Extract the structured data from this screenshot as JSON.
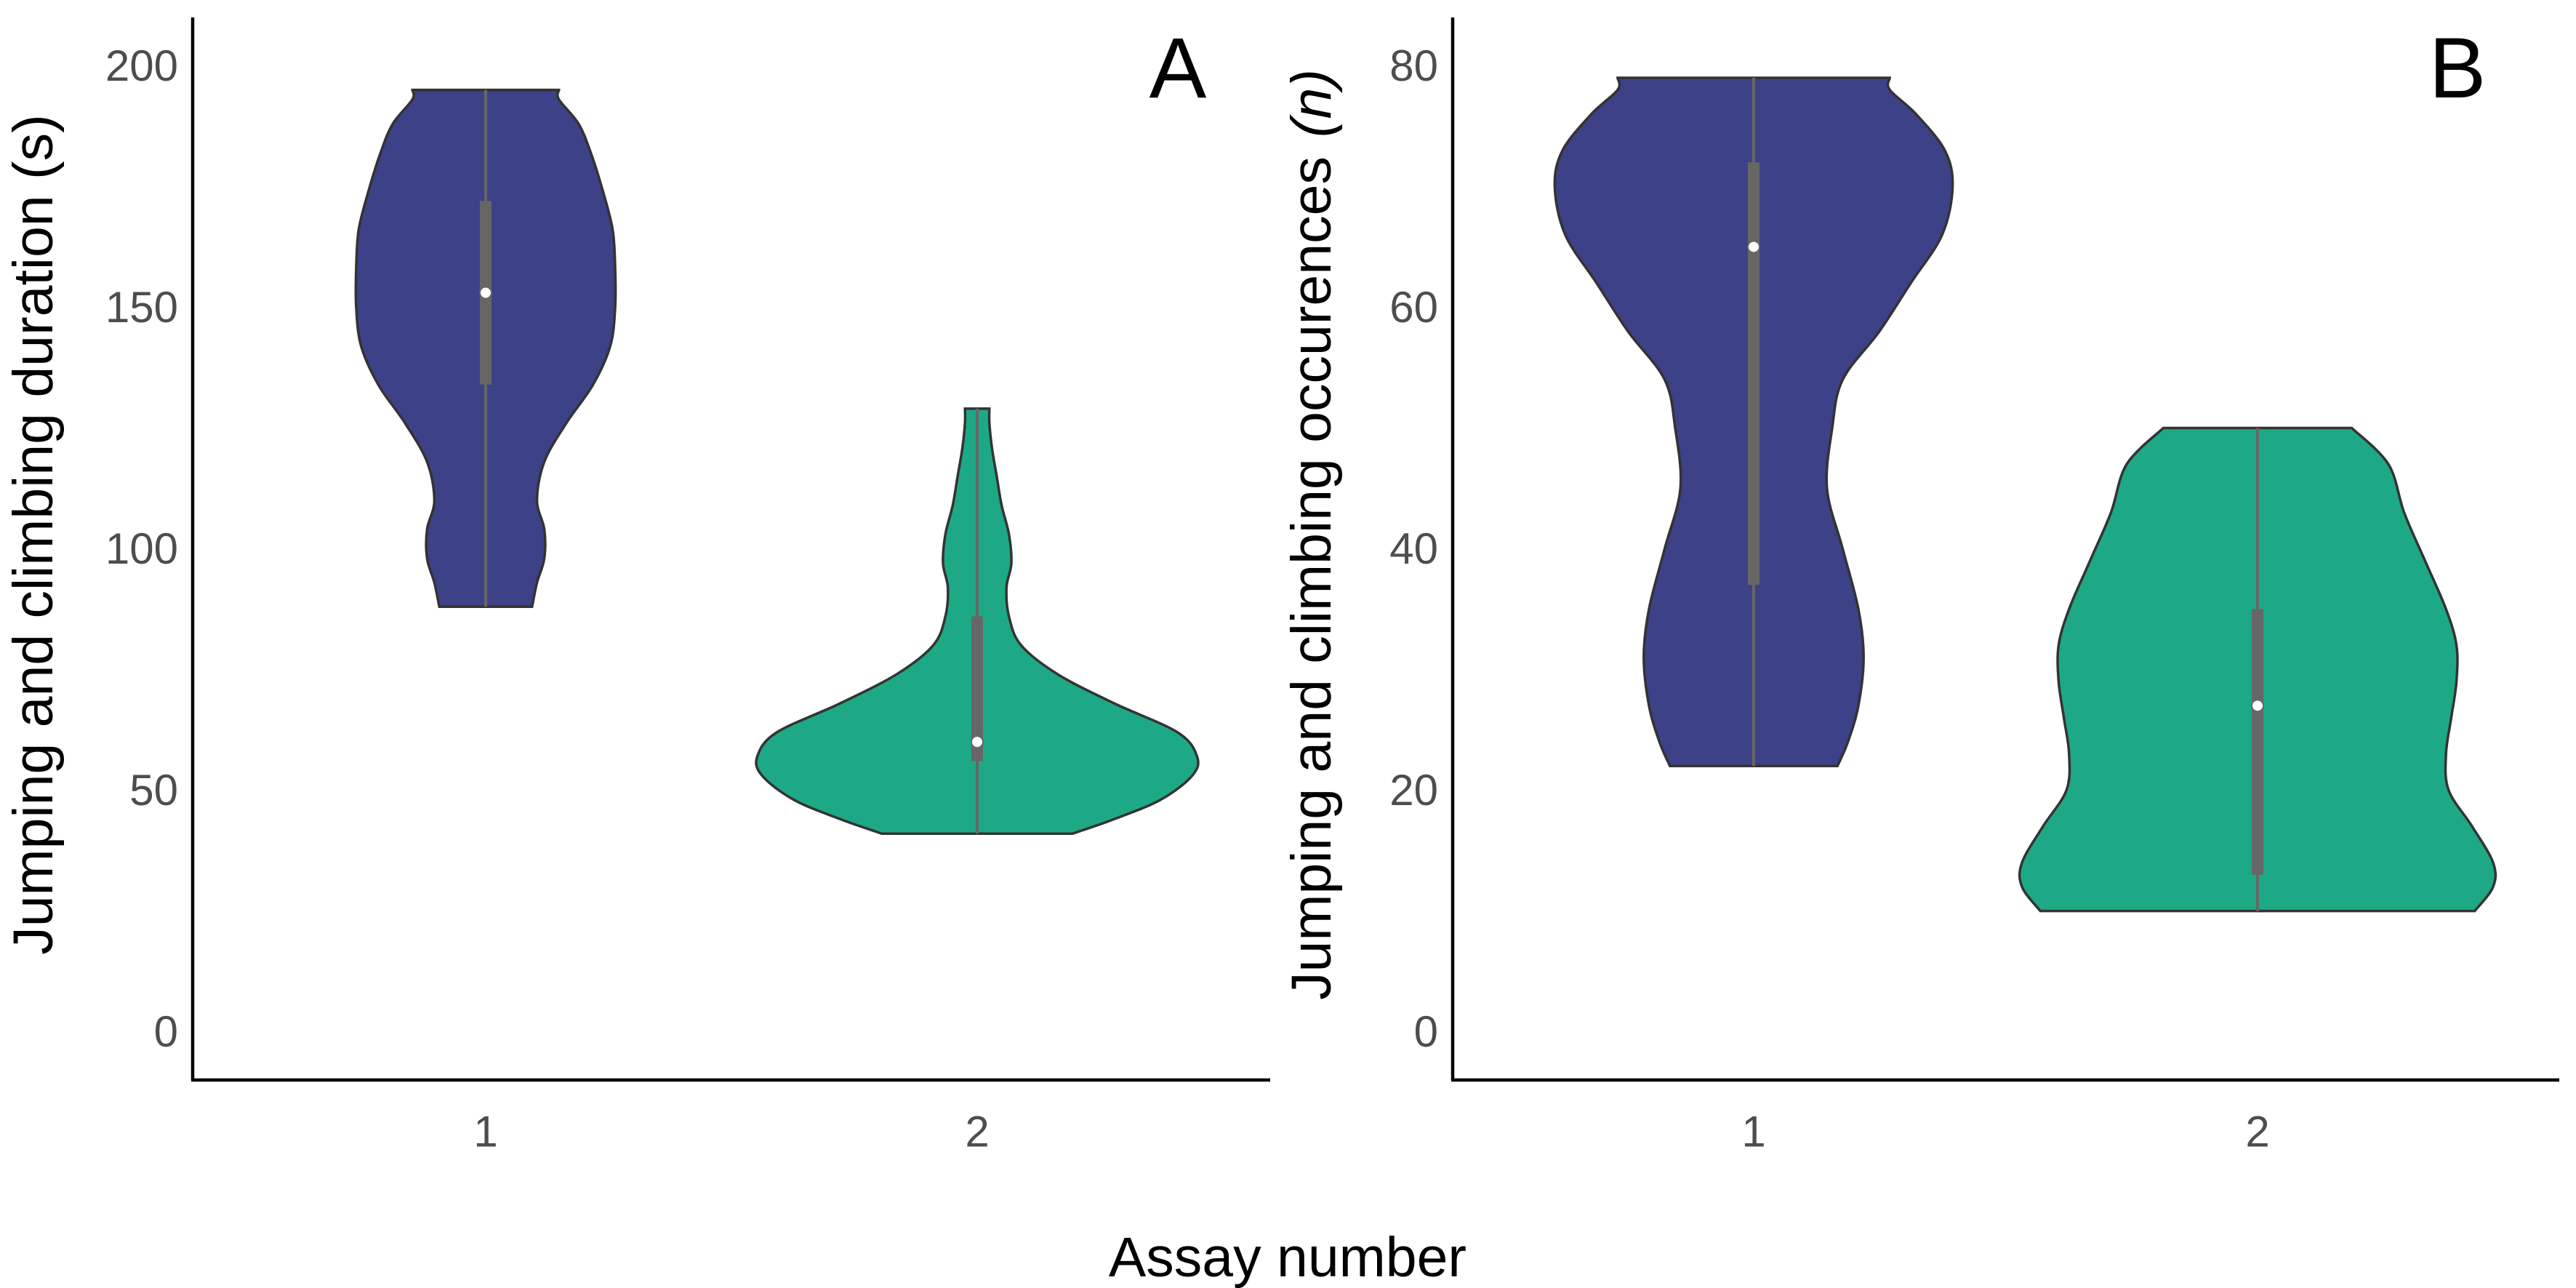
{
  "figure": {
    "shared_xlabel": "Assay number"
  },
  "colors": {
    "assay_1": "#3d4187",
    "assay_2": "#1da985",
    "box": "#666666",
    "median_point": "#ffffff",
    "outline": "#333333"
  },
  "chart_data": [
    {
      "type": "violin",
      "panel_tag": "A",
      "categories": [
        "1",
        "2"
      ],
      "ylabel": "Jumping and climbing duration (s)",
      "ylabel_italic": "",
      "ylim": [
        -10,
        210
      ],
      "yticks": [
        0,
        50,
        100,
        150,
        200
      ],
      "grid": false,
      "series": [
        {
          "category": "1",
          "min": 88,
          "max": 195,
          "q1": 134,
          "median": 153,
          "q3": 172,
          "density_profile": [
            [
              88,
              0.19
            ],
            [
              93,
              0.21
            ],
            [
              98,
              0.24
            ],
            [
              104,
              0.24
            ],
            [
              110,
              0.21
            ],
            [
              118,
              0.24
            ],
            [
              126,
              0.33
            ],
            [
              134,
              0.44
            ],
            [
              142,
              0.51
            ],
            [
              150,
              0.53
            ],
            [
              158,
              0.53
            ],
            [
              166,
              0.52
            ],
            [
              174,
              0.48
            ],
            [
              182,
              0.43
            ],
            [
              188,
              0.38
            ],
            [
              193,
              0.3
            ],
            [
              195,
              0.3
            ]
          ]
        },
        {
          "category": "2",
          "min": 41,
          "max": 129,
          "q1": 56,
          "median": 60,
          "q3": 86,
          "density_profile": [
            [
              41,
              0.39
            ],
            [
              44,
              0.56
            ],
            [
              48,
              0.75
            ],
            [
              53,
              0.88
            ],
            [
              57,
              0.9
            ],
            [
              62,
              0.82
            ],
            [
              68,
              0.56
            ],
            [
              74,
              0.33
            ],
            [
              80,
              0.18
            ],
            [
              86,
              0.13
            ],
            [
              92,
              0.12
            ],
            [
              97,
              0.14
            ],
            [
              103,
              0.13
            ],
            [
              109,
              0.1
            ],
            [
              115,
              0.08
            ],
            [
              121,
              0.06
            ],
            [
              126,
              0.05
            ],
            [
              129,
              0.05
            ]
          ]
        }
      ]
    },
    {
      "type": "violin",
      "panel_tag": "B",
      "categories": [
        "1",
        "2"
      ],
      "ylabel": "Jumping and climbing occurences",
      "ylabel_italic": "(n)",
      "ylim": [
        -4,
        84
      ],
      "yticks": [
        0,
        20,
        40,
        60,
        80
      ],
      "grid": false,
      "series": [
        {
          "category": "1",
          "min": 22,
          "max": 79,
          "q1": 37,
          "median": 65,
          "q3": 72,
          "density_profile": [
            [
              22,
              0.32
            ],
            [
              24,
              0.36
            ],
            [
              27,
              0.4
            ],
            [
              31,
              0.42
            ],
            [
              35,
              0.4
            ],
            [
              40,
              0.34
            ],
            [
              45,
              0.28
            ],
            [
              50,
              0.3
            ],
            [
              54,
              0.34
            ],
            [
              58,
              0.48
            ],
            [
              62,
              0.6
            ],
            [
              66,
              0.72
            ],
            [
              70,
              0.76
            ],
            [
              73,
              0.73
            ],
            [
              76,
              0.62
            ],
            [
              78,
              0.52
            ],
            [
              79,
              0.52
            ]
          ]
        },
        {
          "category": "2",
          "min": 10,
          "max": 50,
          "q1": 13,
          "median": 27,
          "q3": 35,
          "density_profile": [
            [
              10,
              0.83
            ],
            [
              12,
              0.9
            ],
            [
              14,
              0.9
            ],
            [
              17,
              0.82
            ],
            [
              20,
              0.73
            ],
            [
              23,
              0.72
            ],
            [
              26,
              0.74
            ],
            [
              29,
              0.76
            ],
            [
              32,
              0.76
            ],
            [
              35,
              0.72
            ],
            [
              39,
              0.64
            ],
            [
              43,
              0.56
            ],
            [
              47,
              0.5
            ],
            [
              50,
              0.36
            ]
          ]
        }
      ]
    }
  ]
}
